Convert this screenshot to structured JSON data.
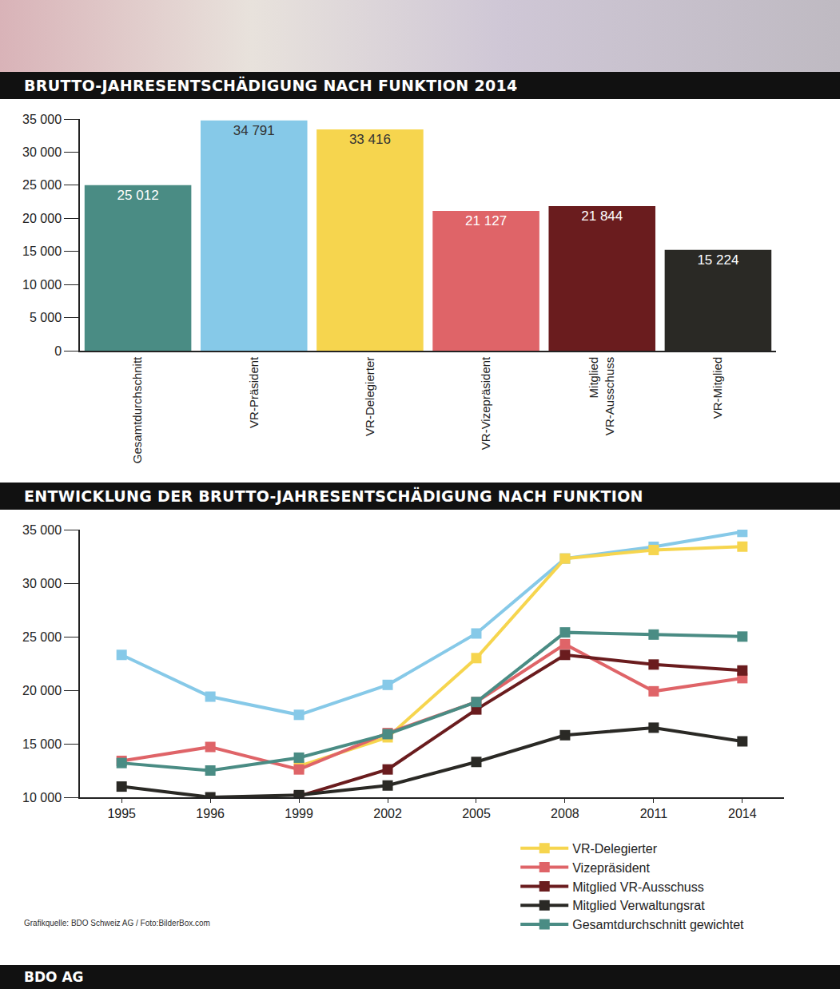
{
  "chart_data": [
    {
      "type": "bar",
      "title": "BRUTTO-JAHRESENTSCHÄDIGUNG NACH FUNKTION 2014",
      "categories": [
        "Gesamtdurchschnitt",
        "VR-Präsident",
        "VR-Delegierter",
        "VR-Vizepräsident",
        "Mitglied VR-Ausschuss",
        "VR-Mitglied"
      ],
      "values": [
        25012,
        34791,
        33416,
        21127,
        21844,
        15224
      ],
      "value_labels": [
        "25 012",
        "34 791",
        "33 416",
        "21 127",
        "21 844",
        "15 224"
      ],
      "colors": [
        "#4a8c84",
        "#86c9e8",
        "#f6d54e",
        "#df6468",
        "#6a1c1e",
        "#2a2925"
      ],
      "ylim": [
        0,
        35000
      ],
      "yticks": [
        0,
        {
          "value": 5000,
          "label": "5 000"
        },
        {
          "value": 10000,
          "label": "10 000"
        },
        {
          "value": 15000,
          "label": "15 000"
        },
        {
          "value": 20000,
          "label": "20 000"
        },
        {
          "value": 25000,
          "label": "25 000"
        },
        {
          "value": 30000,
          "label": "30 000"
        },
        {
          "value": 35000,
          "label": "35 000"
        }
      ],
      "grid": false,
      "data_labels": true
    },
    {
      "type": "line",
      "title": "ENTWICKLUNG DER BRUTTO-JAHRESENTSCHÄDIGUNG NACH FUNKTION",
      "categories": [
        "1995",
        "1996",
        "1999",
        "2002",
        "2005",
        "2008",
        "2011",
        "2014"
      ],
      "series": [
        {
          "name": null,
          "color": "#86c9e8",
          "values": [
            23300,
            19400,
            17700,
            20500,
            25300,
            32300,
            33400,
            34791
          ]
        },
        {
          "name": "VR-Delegierter",
          "color": "#f6d54e",
          "values": [
            null,
            null,
            12900,
            15600,
            23000,
            32300,
            33100,
            33416
          ]
        },
        {
          "name": "Vizepräsident",
          "color": "#df6468",
          "values": [
            13400,
            14700,
            12600,
            16000,
            18900,
            24300,
            19900,
            21127
          ]
        },
        {
          "name": "Mitglied VR-Ausschuss",
          "color": "#6a1c1e",
          "values": [
            null,
            null,
            10100,
            12600,
            18200,
            23300,
            22400,
            21844
          ]
        },
        {
          "name": "Mitglied Verwaltungsrat",
          "color": "#2a2925",
          "values": [
            11000,
            10000,
            10200,
            11100,
            13300,
            15800,
            16500,
            15224
          ]
        },
        {
          "name": "Gesamtdurchschnitt gewichtet",
          "color": "#4a8c84",
          "values": [
            13200,
            12500,
            13700,
            15900,
            18900,
            25400,
            25200,
            25012
          ]
        }
      ],
      "ylim": [
        10000,
        35000
      ],
      "yticks": [
        {
          "value": 10000,
          "label": "10 000"
        },
        {
          "value": 15000,
          "label": "15 000"
        },
        {
          "value": 20000,
          "label": "20 000"
        },
        {
          "value": 25000,
          "label": "25 000"
        },
        {
          "value": 30000,
          "label": "30 000"
        },
        {
          "value": 35000,
          "label": "35 000"
        }
      ],
      "grid": false,
      "marker": "square",
      "legend": "bottom"
    }
  ],
  "source": "Grafikquelle: BDO Schweiz AG / Foto:BilderBox.com",
  "footer": "BDO AG"
}
